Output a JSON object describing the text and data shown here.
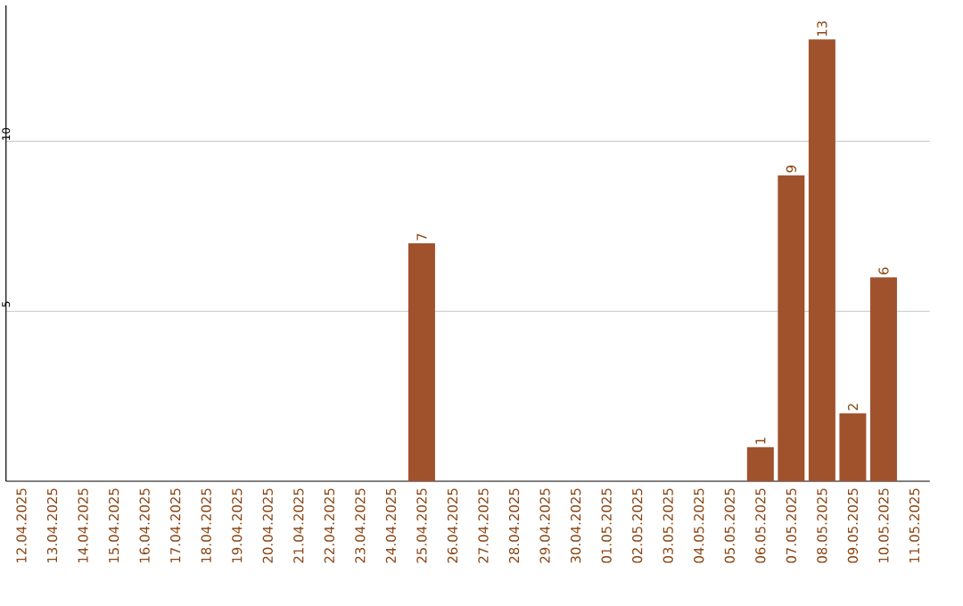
{
  "chart_data": {
    "type": "bar",
    "categories": [
      "12.04.2025",
      "13.04.2025",
      "14.04.2025",
      "15.04.2025",
      "16.04.2025",
      "17.04.2025",
      "18.04.2025",
      "19.04.2025",
      "20.04.2025",
      "21.04.2025",
      "22.04.2025",
      "23.04.2025",
      "24.04.2025",
      "25.04.2025",
      "26.04.2025",
      "27.04.2025",
      "28.04.2025",
      "29.04.2025",
      "30.04.2025",
      "01.05.2025",
      "02.05.2025",
      "03.05.2025",
      "04.05.2025",
      "05.05.2025",
      "06.05.2025",
      "07.05.2025",
      "08.05.2025",
      "09.05.2025",
      "10.05.2025",
      "11.05.2025"
    ],
    "values": [
      0,
      0,
      0,
      0,
      0,
      0,
      0,
      0,
      0,
      0,
      0,
      0,
      0,
      7,
      0,
      0,
      0,
      0,
      0,
      0,
      0,
      0,
      0,
      0,
      1,
      9,
      13,
      2,
      6,
      0
    ],
    "value_labels": [
      null,
      null,
      null,
      null,
      null,
      null,
      null,
      null,
      null,
      null,
      null,
      null,
      null,
      "7",
      null,
      null,
      null,
      null,
      null,
      null,
      null,
      null,
      null,
      null,
      "1",
      "9",
      "13",
      "2",
      "6",
      null
    ],
    "color": "#a0522d",
    "ylim": [
      0,
      14
    ],
    "yticks": [
      5,
      10
    ],
    "grid": "y"
  }
}
